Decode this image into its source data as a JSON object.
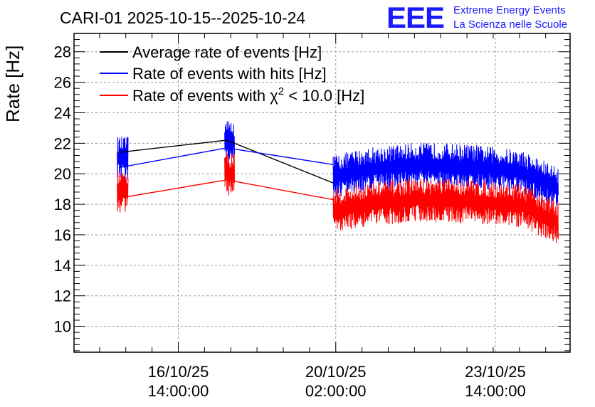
{
  "chart_data": {
    "type": "line",
    "title": "CARI-01 2025-10-15--2025-10-24",
    "ylabel": "Rate [Hz]",
    "xlabel": "",
    "ylim": [
      8.3,
      29.2
    ],
    "xlim_days": [
      0,
      9.42
    ],
    "y_ticks": [
      10,
      12,
      14,
      16,
      18,
      20,
      22,
      24,
      26,
      28
    ],
    "x_ticks": [
      {
        "day": 1.98,
        "line1": "16/10/25",
        "line2": "14:00:00"
      },
      {
        "day": 4.97,
        "line1": "20/10/25",
        "line2": "02:00:00"
      },
      {
        "day": 8.0,
        "line1": "23/10/25",
        "line2": "14:00:00"
      }
    ],
    "legend": [
      {
        "label": "Average rate of events [Hz]",
        "color": "#000000"
      },
      {
        "label": "Rate of events with hits [Hz]",
        "color": "#0000ff"
      },
      {
        "label_prefix": "Rate of events with ",
        "label_symbol": "χ",
        "label_sup": "2",
        "label_suffix": " < 10.0 [Hz]",
        "color": "#ff0000"
      }
    ],
    "segments": [
      {
        "x_start": 0.82,
        "x_end": 1.03,
        "blue_mean": 21.0,
        "red_mean": 18.9
      },
      {
        "x_start": 2.86,
        "x_end": 3.05,
        "blue_mean": 22.1,
        "red_mean": 20.0
      },
      {
        "x_start": 4.92,
        "x_end": 9.2,
        "blue_profile": [
          [
            4.92,
            19.8
          ],
          [
            5.6,
            20.3
          ],
          [
            6.5,
            20.6
          ],
          [
            7.5,
            20.5
          ],
          [
            8.5,
            20.1
          ],
          [
            9.2,
            19.0
          ]
        ],
        "red_profile": [
          [
            4.92,
            17.6
          ],
          [
            5.6,
            18.0
          ],
          [
            6.5,
            18.3
          ],
          [
            7.5,
            18.2
          ],
          [
            8.5,
            17.9
          ],
          [
            9.2,
            16.8
          ]
        ]
      }
    ],
    "series": [
      {
        "name": "Average rate of events [Hz]",
        "color": "#000000",
        "points": [
          [
            0.85,
            21.4
          ],
          [
            2.9,
            22.2
          ],
          [
            4.92,
            19.4
          ]
        ]
      },
      {
        "name": "Rate of events with hits [Hz]",
        "color": "#0000ff",
        "points": [
          [
            0.85,
            20.4
          ],
          [
            2.9,
            21.7
          ],
          [
            4.92,
            20.6
          ]
        ]
      },
      {
        "name": "Rate of events with χ2 < 10.0 [Hz]",
        "color": "#ff0000",
        "points": [
          [
            0.85,
            18.4
          ],
          [
            2.9,
            19.6
          ],
          [
            4.92,
            18.3
          ]
        ]
      }
    ]
  },
  "logo": {
    "text": "EEE",
    "line1": "Extreme Energy Events",
    "line2": "La Scienza nelle Scuole",
    "color": "#1a1aff"
  }
}
